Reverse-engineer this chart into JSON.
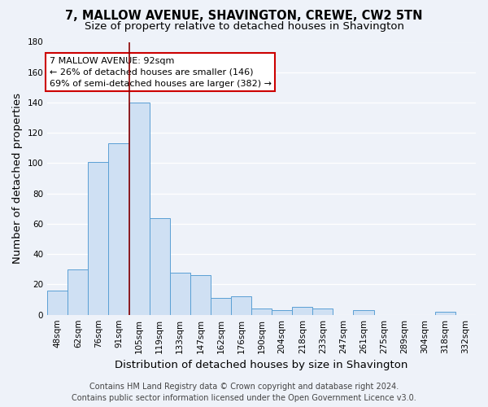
{
  "title": "7, MALLOW AVENUE, SHAVINGTON, CREWE, CW2 5TN",
  "subtitle": "Size of property relative to detached houses in Shavington",
  "xlabel": "Distribution of detached houses by size in Shavington",
  "ylabel": "Number of detached properties",
  "categories": [
    "48sqm",
    "62sqm",
    "76sqm",
    "91sqm",
    "105sqm",
    "119sqm",
    "133sqm",
    "147sqm",
    "162sqm",
    "176sqm",
    "190sqm",
    "204sqm",
    "218sqm",
    "233sqm",
    "247sqm",
    "261sqm",
    "275sqm",
    "289sqm",
    "304sqm",
    "318sqm",
    "332sqm"
  ],
  "values": [
    16,
    30,
    101,
    113,
    140,
    64,
    28,
    26,
    11,
    12,
    4,
    3,
    5,
    4,
    0,
    3,
    0,
    0,
    0,
    2,
    0
  ],
  "bar_color": "#cfe0f3",
  "bar_edge_color": "#5a9fd4",
  "ylim": [
    0,
    180
  ],
  "yticks": [
    0,
    20,
    40,
    60,
    80,
    100,
    120,
    140,
    160,
    180
  ],
  "property_label": "7 MALLOW AVENUE: 92sqm",
  "annotation_line1": "← 26% of detached houses are smaller (146)",
  "annotation_line2": "69% of semi-detached houses are larger (382) →",
  "annotation_box_color": "#ffffff",
  "annotation_box_edge": "#cc0000",
  "vline_x": 3.5,
  "vline_color": "#8b0000",
  "footer_line1": "Contains HM Land Registry data © Crown copyright and database right 2024.",
  "footer_line2": "Contains public sector information licensed under the Open Government Licence v3.0.",
  "background_color": "#eef2f9",
  "plot_bg_color": "#eef2f9",
  "grid_color": "#ffffff",
  "title_fontsize": 10.5,
  "subtitle_fontsize": 9.5,
  "axis_label_fontsize": 9.5,
  "tick_fontsize": 7.5,
  "annotation_fontsize": 8,
  "footer_fontsize": 7
}
